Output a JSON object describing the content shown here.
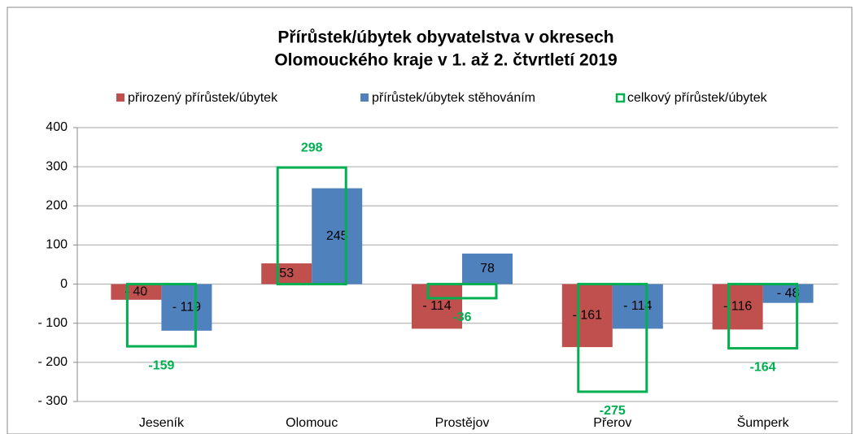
{
  "chart_data": {
    "type": "bar",
    "title": [
      "Přírůstek/úbytek obyvatelstva v okresech",
      "Olomouckého kraje v 1. až 2. čtvrtletí 2019"
    ],
    "categories": [
      "Jeseník",
      "Olomouc",
      "Prostějov",
      "Přerov",
      "Šumperk"
    ],
    "series": [
      {
        "name": "přirozený přírůstek/úbytek",
        "color": "#c0504d",
        "style": "filled",
        "values": [
          -40,
          53,
          -114,
          -161,
          -116
        ],
        "value_labels": [
          "- 40",
          "53",
          "- 114",
          "- 161",
          "- 116"
        ]
      },
      {
        "name": "přírůstek/úbytek stěhováním",
        "color": "#4f81bd",
        "style": "filled",
        "values": [
          -119,
          245,
          78,
          -114,
          -48
        ],
        "value_labels": [
          "- 119",
          "245",
          "78",
          "- 114",
          "- 48"
        ]
      },
      {
        "name": "celkový přírůstek/úbytek",
        "color": "#00b050",
        "style": "outline",
        "values": [
          -159,
          298,
          -36,
          -275,
          -164
        ]
      }
    ],
    "ylim": [
      -300,
      400
    ],
    "yticks": [
      {
        "value": -300,
        "label": "- 300"
      },
      {
        "value": -200,
        "label": "- 200"
      },
      {
        "value": -100,
        "label": "- 100"
      },
      0,
      100,
      200,
      300,
      400
    ],
    "grid": true,
    "legend": "top"
  }
}
